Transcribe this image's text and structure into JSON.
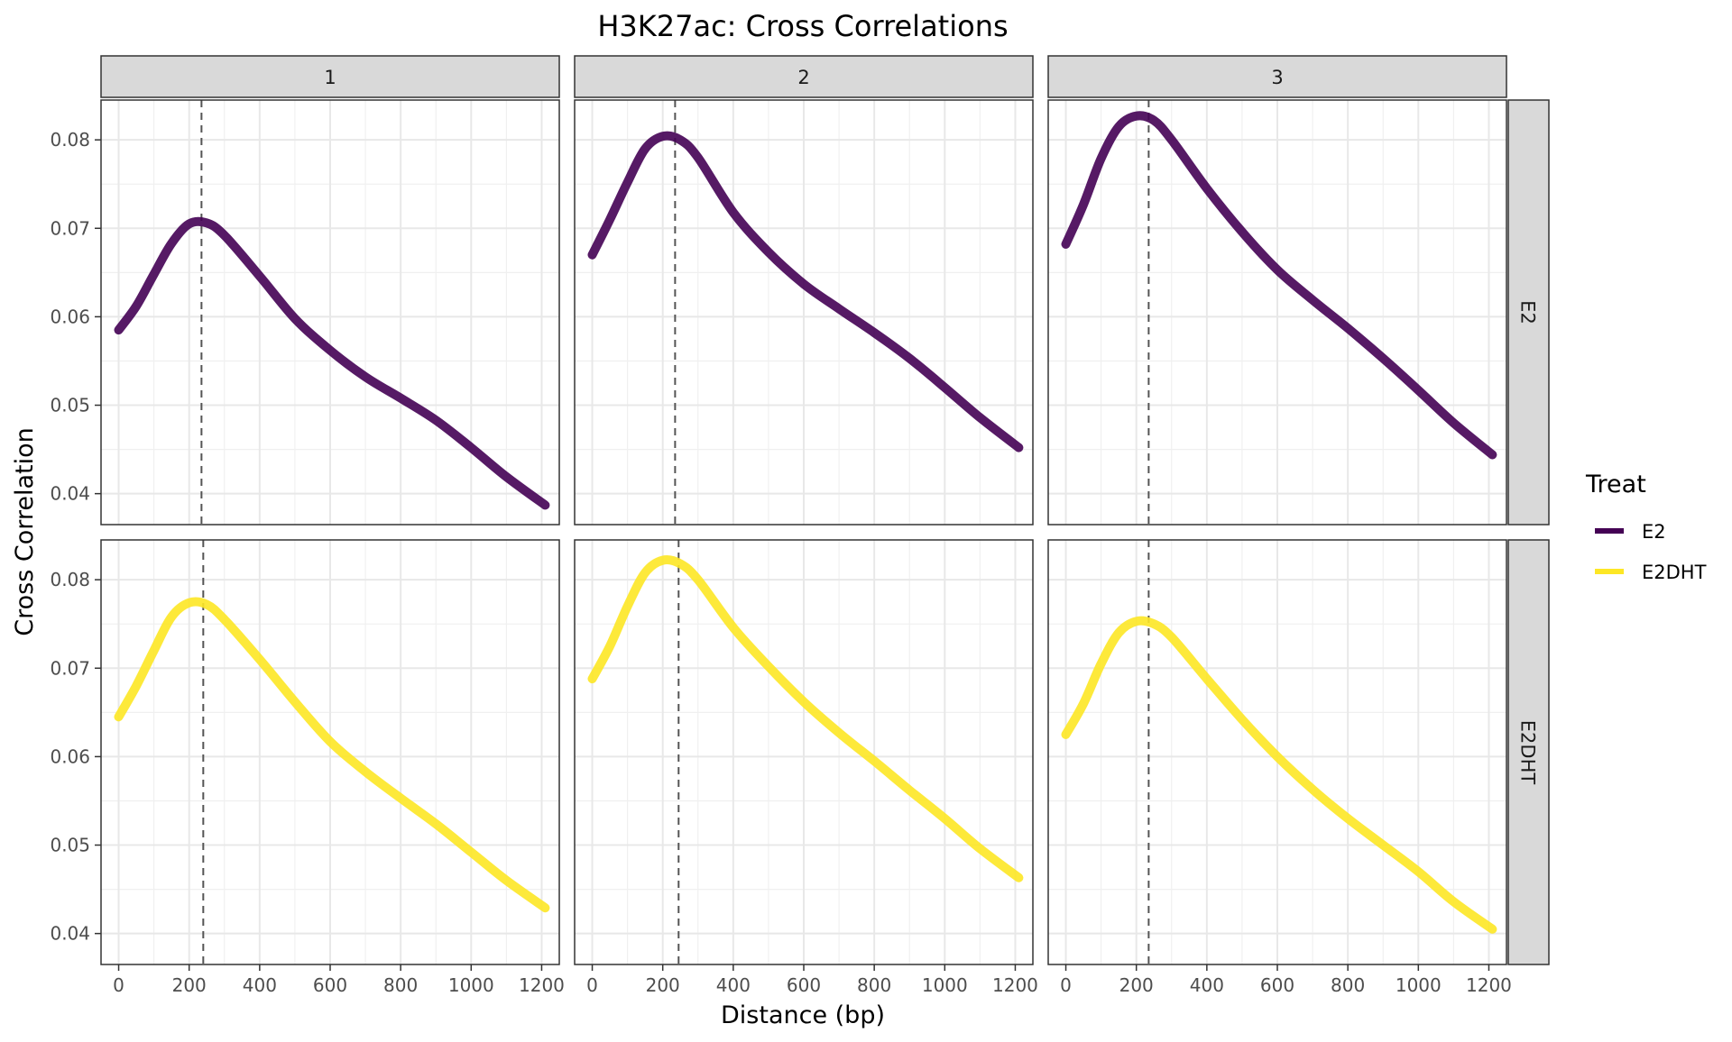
{
  "chart_data": {
    "type": "line",
    "title": "H3K27ac: Cross Correlations",
    "xlabel": "Distance (bp)",
    "ylabel": "Cross Correlation",
    "xlim": [
      -50,
      1250
    ],
    "ylim": [
      0.0365,
      0.0845
    ],
    "x_ticks": [
      0,
      200,
      400,
      600,
      800,
      1000,
      1200
    ],
    "y_ticks": [
      0.04,
      0.05,
      0.06,
      0.07,
      0.08
    ],
    "y_tick_labels": [
      "0.04",
      "0.05",
      "0.06",
      "0.07",
      "0.08"
    ],
    "grid": true,
    "col_strips": [
      "1",
      "2",
      "3"
    ],
    "row_strips": [
      "E2",
      "E2DHT"
    ],
    "legend": {
      "title": "Treat",
      "placement": "right",
      "entries": [
        {
          "label": "E2",
          "color": "#440154"
        },
        {
          "label": "E2DHT",
          "color": "#FDE725"
        }
      ]
    },
    "panels": [
      {
        "col": "1",
        "row": "E2",
        "series": "E2",
        "color": "#440154",
        "fragment_length": 235,
        "x": [
          0,
          50,
          100,
          150,
          200,
          250,
          300,
          400,
          500,
          600,
          700,
          800,
          900,
          1000,
          1100,
          1210
        ],
        "y": [
          0.0585,
          0.0612,
          0.0648,
          0.0683,
          0.0705,
          0.0706,
          0.0692,
          0.0646,
          0.0598,
          0.0562,
          0.0532,
          0.0508,
          0.0483,
          0.0452,
          0.0419,
          0.0387
        ]
      },
      {
        "col": "2",
        "row": "E2",
        "series": "E2",
        "color": "#440154",
        "fragment_length": 235,
        "x": [
          0,
          50,
          100,
          150,
          200,
          250,
          300,
          400,
          500,
          600,
          700,
          800,
          900,
          1000,
          1100,
          1210
        ],
        "y": [
          0.067,
          0.071,
          0.0752,
          0.079,
          0.0804,
          0.08,
          0.078,
          0.0718,
          0.0673,
          0.0637,
          0.0609,
          0.0582,
          0.0553,
          0.052,
          0.0486,
          0.0452
        ]
      },
      {
        "col": "3",
        "row": "E2",
        "series": "E2",
        "color": "#440154",
        "fragment_length": 235,
        "x": [
          0,
          50,
          100,
          150,
          200,
          250,
          300,
          400,
          500,
          600,
          700,
          800,
          900,
          1000,
          1100,
          1210
        ],
        "y": [
          0.0682,
          0.0727,
          0.0779,
          0.0815,
          0.0827,
          0.0822,
          0.08,
          0.0745,
          0.0696,
          0.0653,
          0.0619,
          0.0587,
          0.0553,
          0.0517,
          0.048,
          0.0444
        ]
      },
      {
        "col": "1",
        "row": "E2DHT",
        "series": "E2DHT",
        "color": "#FDE725",
        "fragment_length": 240,
        "x": [
          0,
          50,
          100,
          150,
          200,
          250,
          300,
          400,
          500,
          600,
          700,
          800,
          900,
          1000,
          1100,
          1210
        ],
        "y": [
          0.0645,
          0.068,
          0.072,
          0.0758,
          0.0774,
          0.0772,
          0.0755,
          0.071,
          0.0662,
          0.0617,
          0.0583,
          0.0553,
          0.0524,
          0.0492,
          0.046,
          0.0429
        ]
      },
      {
        "col": "2",
        "row": "E2DHT",
        "series": "E2DHT",
        "color": "#FDE725",
        "fragment_length": 245,
        "x": [
          0,
          50,
          100,
          150,
          200,
          250,
          300,
          400,
          500,
          600,
          700,
          800,
          900,
          1000,
          1100,
          1210
        ],
        "y": [
          0.0688,
          0.0725,
          0.077,
          0.0808,
          0.0822,
          0.0818,
          0.08,
          0.0746,
          0.0702,
          0.0662,
          0.0627,
          0.0595,
          0.0562,
          0.053,
          0.0496,
          0.0463
        ]
      },
      {
        "col": "3",
        "row": "E2DHT",
        "series": "E2DHT",
        "color": "#FDE725",
        "fragment_length": 235,
        "x": [
          0,
          50,
          100,
          150,
          200,
          250,
          300,
          400,
          500,
          600,
          700,
          800,
          900,
          1000,
          1100,
          1210
        ],
        "y": [
          0.0625,
          0.066,
          0.0705,
          0.074,
          0.0753,
          0.075,
          0.0735,
          0.0688,
          0.0642,
          0.06,
          0.0563,
          0.053,
          0.05,
          0.047,
          0.0436,
          0.0405
        ]
      }
    ]
  }
}
